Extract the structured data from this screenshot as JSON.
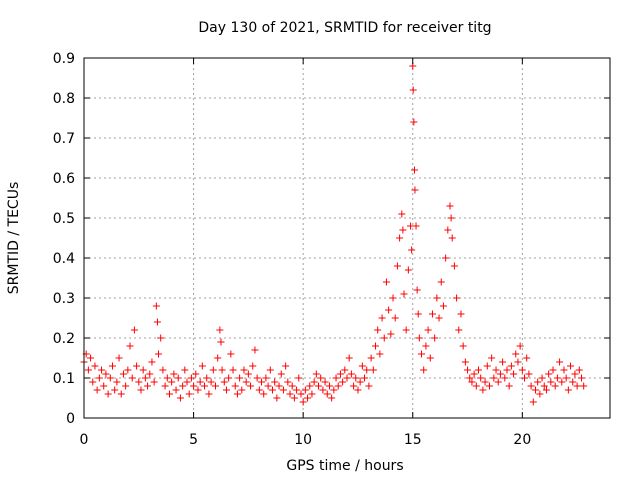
{
  "chart_data": {
    "type": "scatter",
    "title": "Day 130 of 2021, SRMTID for receiver titg",
    "xlabel": "GPS time / hours",
    "ylabel": "SRMTID / TECUs",
    "xlim": [
      0,
      24
    ],
    "ylim": [
      0,
      0.9
    ],
    "xticks": [
      "0",
      "5",
      "10",
      "15",
      "20"
    ],
    "yticks": [
      "0",
      "0.1",
      "0.2",
      "0.3",
      "0.4",
      "0.5",
      "0.6",
      "0.7",
      "0.8",
      "0.9"
    ],
    "marker": "plus",
    "color": "#ff0000",
    "grid": true,
    "series": [
      {
        "name": "SRMTID",
        "points": [
          [
            0.0,
            0.14
          ],
          [
            0.1,
            0.16
          ],
          [
            0.2,
            0.12
          ],
          [
            0.3,
            0.15
          ],
          [
            0.4,
            0.09
          ],
          [
            0.5,
            0.13
          ],
          [
            0.6,
            0.07
          ],
          [
            0.7,
            0.1
          ],
          [
            0.8,
            0.12
          ],
          [
            0.9,
            0.08
          ],
          [
            1.0,
            0.11
          ],
          [
            1.1,
            0.06
          ],
          [
            1.2,
            0.1
          ],
          [
            1.3,
            0.13
          ],
          [
            1.4,
            0.07
          ],
          [
            1.5,
            0.09
          ],
          [
            1.6,
            0.15
          ],
          [
            1.7,
            0.06
          ],
          [
            1.8,
            0.11
          ],
          [
            1.9,
            0.08
          ],
          [
            2.0,
            0.12
          ],
          [
            2.1,
            0.18
          ],
          [
            2.2,
            0.1
          ],
          [
            2.3,
            0.22
          ],
          [
            2.4,
            0.13
          ],
          [
            2.5,
            0.09
          ],
          [
            2.6,
            0.07
          ],
          [
            2.7,
            0.12
          ],
          [
            2.8,
            0.1
          ],
          [
            2.9,
            0.08
          ],
          [
            3.0,
            0.11
          ],
          [
            3.1,
            0.14
          ],
          [
            3.2,
            0.09
          ],
          [
            3.3,
            0.28
          ],
          [
            3.35,
            0.24
          ],
          [
            3.4,
            0.16
          ],
          [
            3.5,
            0.2
          ],
          [
            3.6,
            0.12
          ],
          [
            3.7,
            0.08
          ],
          [
            3.8,
            0.1
          ],
          [
            3.9,
            0.06
          ],
          [
            4.0,
            0.09
          ],
          [
            4.1,
            0.11
          ],
          [
            4.2,
            0.07
          ],
          [
            4.3,
            0.1
          ],
          [
            4.4,
            0.05
          ],
          [
            4.5,
            0.08
          ],
          [
            4.6,
            0.12
          ],
          [
            4.7,
            0.09
          ],
          [
            4.8,
            0.06
          ],
          [
            4.9,
            0.1
          ],
          [
            5.0,
            0.08
          ],
          [
            5.1,
            0.11
          ],
          [
            5.2,
            0.07
          ],
          [
            5.3,
            0.09
          ],
          [
            5.4,
            0.13
          ],
          [
            5.5,
            0.08
          ],
          [
            5.6,
            0.1
          ],
          [
            5.7,
            0.06
          ],
          [
            5.8,
            0.09
          ],
          [
            5.9,
            0.12
          ],
          [
            6.0,
            0.08
          ],
          [
            6.1,
            0.15
          ],
          [
            6.2,
            0.22
          ],
          [
            6.25,
            0.19
          ],
          [
            6.3,
            0.12
          ],
          [
            6.4,
            0.09
          ],
          [
            6.5,
            0.07
          ],
          [
            6.6,
            0.1
          ],
          [
            6.7,
            0.16
          ],
          [
            6.8,
            0.12
          ],
          [
            6.9,
            0.08
          ],
          [
            7.0,
            0.06
          ],
          [
            7.1,
            0.1
          ],
          [
            7.2,
            0.07
          ],
          [
            7.3,
            0.12
          ],
          [
            7.4,
            0.09
          ],
          [
            7.5,
            0.11
          ],
          [
            7.6,
            0.08
          ],
          [
            7.7,
            0.13
          ],
          [
            7.8,
            0.17
          ],
          [
            7.9,
            0.1
          ],
          [
            8.0,
            0.07
          ],
          [
            8.1,
            0.09
          ],
          [
            8.2,
            0.06
          ],
          [
            8.3,
            0.1
          ],
          [
            8.4,
            0.08
          ],
          [
            8.5,
            0.12
          ],
          [
            8.6,
            0.07
          ],
          [
            8.7,
            0.09
          ],
          [
            8.8,
            0.05
          ],
          [
            8.9,
            0.08
          ],
          [
            9.0,
            0.11
          ],
          [
            9.1,
            0.07
          ],
          [
            9.2,
            0.13
          ],
          [
            9.3,
            0.09
          ],
          [
            9.4,
            0.06
          ],
          [
            9.5,
            0.08
          ],
          [
            9.6,
            0.05
          ],
          [
            9.7,
            0.07
          ],
          [
            9.8,
            0.1
          ],
          [
            9.9,
            0.06
          ],
          [
            10.0,
            0.04
          ],
          [
            10.1,
            0.07
          ],
          [
            10.2,
            0.05
          ],
          [
            10.3,
            0.08
          ],
          [
            10.4,
            0.06
          ],
          [
            10.5,
            0.09
          ],
          [
            10.6,
            0.11
          ],
          [
            10.7,
            0.08
          ],
          [
            10.8,
            0.1
          ],
          [
            10.9,
            0.07
          ],
          [
            11.0,
            0.09
          ],
          [
            11.1,
            0.06
          ],
          [
            11.2,
            0.08
          ],
          [
            11.3,
            0.05
          ],
          [
            11.4,
            0.07
          ],
          [
            11.5,
            0.1
          ],
          [
            11.6,
            0.08
          ],
          [
            11.7,
            0.11
          ],
          [
            11.8,
            0.09
          ],
          [
            11.9,
            0.12
          ],
          [
            12.0,
            0.1
          ],
          [
            12.1,
            0.15
          ],
          [
            12.2,
            0.11
          ],
          [
            12.3,
            0.08
          ],
          [
            12.4,
            0.1
          ],
          [
            12.5,
            0.07
          ],
          [
            12.6,
            0.09
          ],
          [
            12.7,
            0.13
          ],
          [
            12.8,
            0.1
          ],
          [
            12.9,
            0.12
          ],
          [
            13.0,
            0.08
          ],
          [
            13.1,
            0.15
          ],
          [
            13.2,
            0.12
          ],
          [
            13.3,
            0.18
          ],
          [
            13.4,
            0.22
          ],
          [
            13.5,
            0.16
          ],
          [
            13.6,
            0.25
          ],
          [
            13.7,
            0.2
          ],
          [
            13.8,
            0.34
          ],
          [
            13.9,
            0.27
          ],
          [
            14.0,
            0.21
          ],
          [
            14.1,
            0.3
          ],
          [
            14.2,
            0.25
          ],
          [
            14.3,
            0.38
          ],
          [
            14.4,
            0.45
          ],
          [
            14.5,
            0.51
          ],
          [
            14.55,
            0.47
          ],
          [
            14.6,
            0.31
          ],
          [
            14.7,
            0.22
          ],
          [
            14.8,
            0.37
          ],
          [
            14.9,
            0.48
          ],
          [
            14.95,
            0.42
          ],
          [
            15.0,
            0.88
          ],
          [
            15.02,
            0.82
          ],
          [
            15.05,
            0.74
          ],
          [
            15.08,
            0.62
          ],
          [
            15.1,
            0.57
          ],
          [
            15.15,
            0.48
          ],
          [
            15.2,
            0.32
          ],
          [
            15.25,
            0.26
          ],
          [
            15.3,
            0.2
          ],
          [
            15.4,
            0.16
          ],
          [
            15.5,
            0.12
          ],
          [
            15.6,
            0.18
          ],
          [
            15.7,
            0.22
          ],
          [
            15.8,
            0.15
          ],
          [
            15.9,
            0.26
          ],
          [
            16.0,
            0.2
          ],
          [
            16.1,
            0.3
          ],
          [
            16.2,
            0.25
          ],
          [
            16.3,
            0.34
          ],
          [
            16.4,
            0.28
          ],
          [
            16.5,
            0.4
          ],
          [
            16.6,
            0.47
          ],
          [
            16.7,
            0.53
          ],
          [
            16.75,
            0.5
          ],
          [
            16.8,
            0.45
          ],
          [
            16.9,
            0.38
          ],
          [
            17.0,
            0.3
          ],
          [
            17.1,
            0.22
          ],
          [
            17.2,
            0.26
          ],
          [
            17.3,
            0.18
          ],
          [
            17.4,
            0.14
          ],
          [
            17.5,
            0.12
          ],
          [
            17.6,
            0.1
          ],
          [
            17.7,
            0.09
          ],
          [
            17.8,
            0.11
          ],
          [
            17.9,
            0.08
          ],
          [
            18.0,
            0.12
          ],
          [
            18.1,
            0.1
          ],
          [
            18.2,
            0.07
          ],
          [
            18.3,
            0.09
          ],
          [
            18.4,
            0.13
          ],
          [
            18.5,
            0.08
          ],
          [
            18.6,
            0.15
          ],
          [
            18.7,
            0.1
          ],
          [
            18.8,
            0.12
          ],
          [
            18.9,
            0.09
          ],
          [
            19.0,
            0.11
          ],
          [
            19.1,
            0.14
          ],
          [
            19.2,
            0.1
          ],
          [
            19.3,
            0.12
          ],
          [
            19.4,
            0.08
          ],
          [
            19.5,
            0.13
          ],
          [
            19.6,
            0.11
          ],
          [
            19.7,
            0.16
          ],
          [
            19.8,
            0.14
          ],
          [
            19.9,
            0.18
          ],
          [
            20.0,
            0.12
          ],
          [
            20.1,
            0.1
          ],
          [
            20.2,
            0.15
          ],
          [
            20.3,
            0.11
          ],
          [
            20.4,
            0.08
          ],
          [
            20.5,
            0.04
          ],
          [
            20.6,
            0.07
          ],
          [
            20.7,
            0.09
          ],
          [
            20.8,
            0.06
          ],
          [
            20.9,
            0.1
          ],
          [
            21.0,
            0.08
          ],
          [
            21.1,
            0.07
          ],
          [
            21.2,
            0.11
          ],
          [
            21.3,
            0.09
          ],
          [
            21.4,
            0.12
          ],
          [
            21.5,
            0.08
          ],
          [
            21.6,
            0.1
          ],
          [
            21.7,
            0.14
          ],
          [
            21.8,
            0.09
          ],
          [
            21.9,
            0.12
          ],
          [
            22.0,
            0.1
          ],
          [
            22.1,
            0.07
          ],
          [
            22.2,
            0.13
          ],
          [
            22.3,
            0.09
          ],
          [
            22.4,
            0.11
          ],
          [
            22.5,
            0.08
          ],
          [
            22.6,
            0.12
          ],
          [
            22.7,
            0.1
          ],
          [
            22.8,
            0.08
          ]
        ]
      }
    ]
  }
}
